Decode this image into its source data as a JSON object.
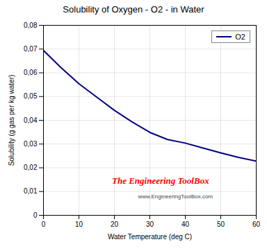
{
  "chart_data": {
    "type": "line",
    "title": "Solubility of Oxygen - O2 - in Water",
    "x_label": "Water Temperature (deg C)",
    "y_label": "Solubility (g gas per kg water)",
    "x": [
      0,
      5,
      10,
      15,
      20,
      25,
      30,
      35,
      40,
      45,
      50,
      55,
      60
    ],
    "series": [
      {
        "name": "O2",
        "color": "#000080",
        "values": [
          0.0694,
          0.0621,
          0.0554,
          0.0498,
          0.0442,
          0.0393,
          0.0349,
          0.0319,
          0.0304,
          0.0283,
          0.0263,
          0.0244,
          0.0228
        ]
      }
    ],
    "xlim": [
      0,
      60
    ],
    "ylim": [
      0,
      0.08
    ],
    "xticks": [
      0,
      10,
      20,
      30,
      40,
      50,
      60
    ],
    "yticks": [
      0,
      {
        "value": 0.01,
        "label": "0,01"
      },
      {
        "value": 0.02,
        "label": "0,02"
      },
      {
        "value": 0.03,
        "label": "0,03"
      },
      {
        "value": 0.04,
        "label": "0,04"
      },
      {
        "value": 0.05,
        "label": "0,05"
      },
      {
        "value": 0.06,
        "label": "0,06"
      },
      {
        "value": 0.07,
        "label": "0,07"
      },
      {
        "value": 0.08,
        "label": "0,08"
      }
    ],
    "grid": true,
    "legend": "upper right",
    "annotations": [
      {
        "text": "The Engineering ToolBox",
        "color": "#ff0000"
      },
      {
        "text": "www.EngineeringToolBox.com",
        "color": "#444444"
      }
    ]
  }
}
